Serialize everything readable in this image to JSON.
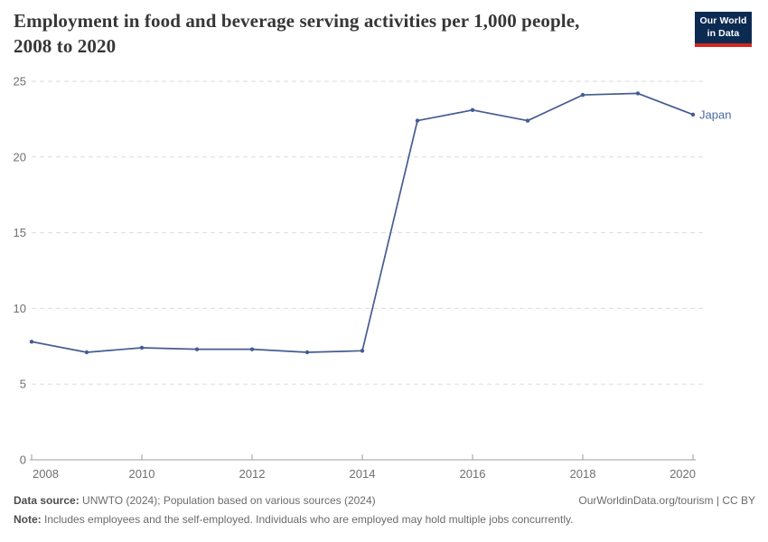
{
  "header": {
    "title": "Employment in food and beverage serving activities per 1,000 people,\n2008 to 2020",
    "logo": {
      "line1": "Our World",
      "line2": "in Data"
    }
  },
  "colors": {
    "series_line": "#455c92",
    "entity_label": "#4c69a0",
    "logo_navy": "#0c2b52",
    "logo_red": "#d4261f",
    "gridline": "#dcdcdc",
    "axis_line": "#9e9e9e",
    "tick_label": "#6f6f6f",
    "title_text": "#373737",
    "footer_text": "#6b6b6b"
  },
  "chart_data": {
    "type": "line",
    "title": "Employment in food and beverage serving activities per 1,000 people, 2008 to 2020",
    "xlabel": "",
    "ylabel": "",
    "xlim": [
      2008,
      2020
    ],
    "ylim": [
      0,
      25
    ],
    "x_ticks": [
      2008,
      2010,
      2012,
      2014,
      2016,
      2018,
      2020
    ],
    "y_ticks": [
      0,
      5,
      10,
      15,
      20,
      25
    ],
    "grid": "horizontal-dashed",
    "legend_position": "end-of-line-label",
    "x": [
      2008,
      2009,
      2010,
      2011,
      2012,
      2013,
      2014,
      2015,
      2016,
      2017,
      2018,
      2019,
      2020
    ],
    "series": [
      {
        "name": "Japan",
        "color": "#455c92",
        "values": [
          7.8,
          7.1,
          7.4,
          7.3,
          7.3,
          7.1,
          7.2,
          22.4,
          23.1,
          22.4,
          24.1,
          24.2,
          22.8
        ]
      }
    ]
  },
  "footer": {
    "datasource_label": "Data source:",
    "datasource_text": " UNWTO (2024); Population based on various sources (2024)",
    "credit": "OurWorldinData.org/tourism | CC BY",
    "note_label": "Note:",
    "note_text": " Includes employees and the self-employed. Individuals who are employed may hold multiple jobs concurrently."
  }
}
